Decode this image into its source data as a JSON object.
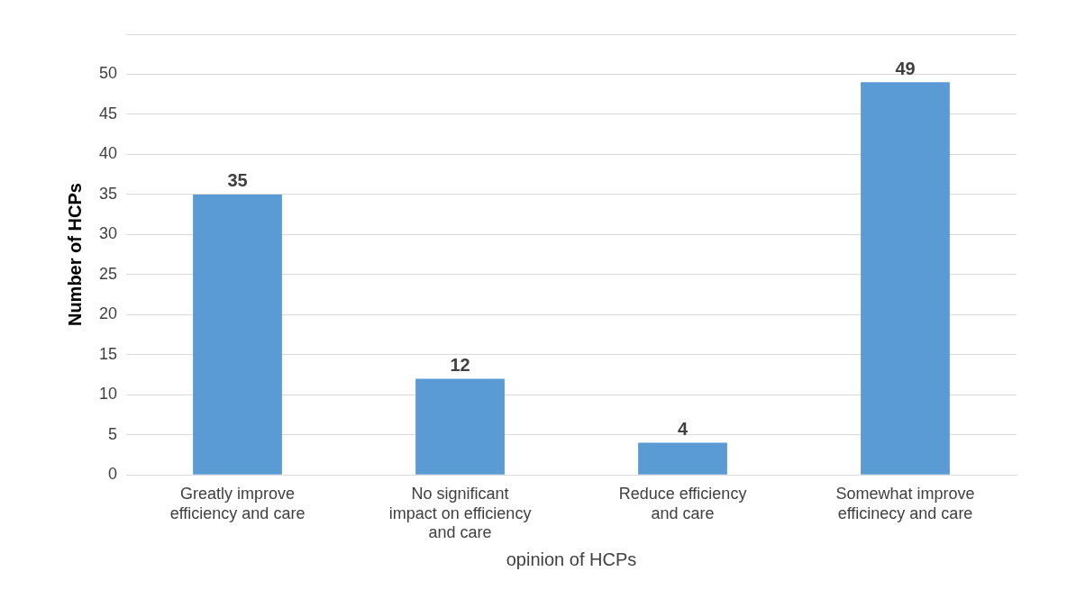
{
  "chart_data": {
    "type": "bar",
    "xlabel": "opinion of HCPs",
    "ylabel": "Number of HCPs",
    "categories": [
      "Greatly improve efficiency and care",
      "No significant impact on efficiency and care",
      "Reduce efficiency and care",
      "Somewhat improve efficinecy and care"
    ],
    "values": [
      35,
      12,
      4,
      49
    ],
    "color": "#5b9bd5",
    "ylim": [
      0,
      55
    ],
    "yticks": [
      0,
      5,
      10,
      15,
      20,
      25,
      30,
      35,
      40,
      45,
      50,
      {
        "value": 55,
        "label": null
      }
    ],
    "grid": "y",
    "data_labels": true
  }
}
